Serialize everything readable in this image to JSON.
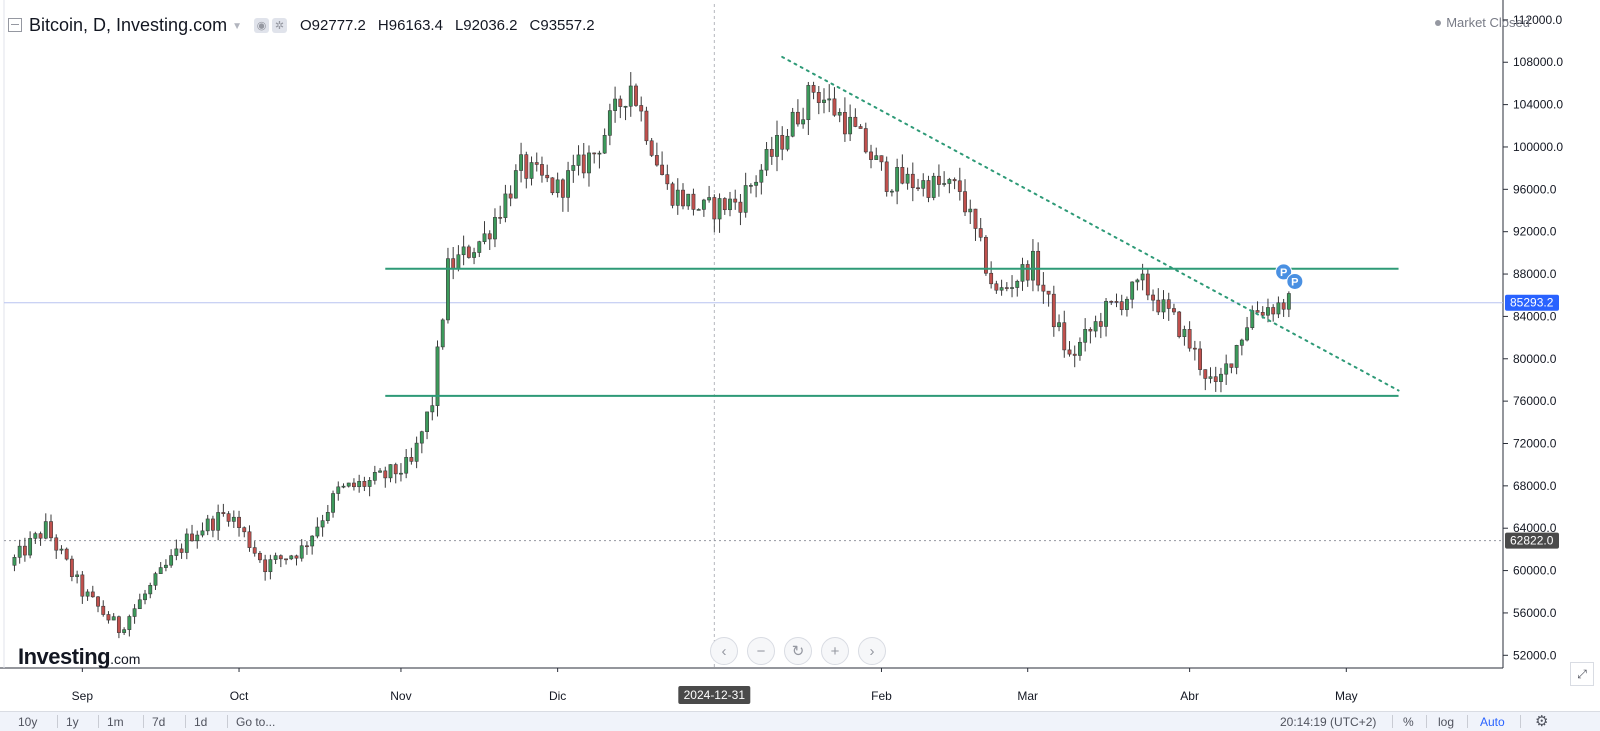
{
  "header": {
    "symbol": "Bitcoin, D, Investing.com",
    "ohlc": [
      {
        "key": "O",
        "value": "92777.2"
      },
      {
        "key": "H",
        "value": "96163.4"
      },
      {
        "key": "L",
        "value": "92036.2"
      },
      {
        "key": "C",
        "value": "93557.2"
      }
    ],
    "status": "Market Closed"
  },
  "brand": {
    "name": "Investing",
    "suffix": ".com"
  },
  "nav_buttons": [
    {
      "name": "scroll-left-button",
      "glyph": "‹"
    },
    {
      "name": "zoom-out-button",
      "glyph": "−"
    },
    {
      "name": "reset-button",
      "glyph": "↻"
    },
    {
      "name": "zoom-in-button",
      "glyph": "+"
    },
    {
      "name": "scroll-right-button",
      "glyph": "›"
    }
  ],
  "bottom_bar": {
    "timeframes": [
      "10y",
      "1y",
      "1m",
      "7d",
      "1d",
      "Go to..."
    ],
    "clock": "20:14:19 (UTC+2)",
    "percent_label": "%",
    "log_label": "log",
    "auto_label": "Auto"
  },
  "crosshair_date": "2024-12-31",
  "colors": {
    "up": "#3c9a5b",
    "down": "#c0504d",
    "support_line": "#2e9a77",
    "trend_line": "#2e9a77",
    "current_price_tag": "#2962ff",
    "marker": "#4a90e2"
  },
  "chart_data": {
    "type": "candlestick",
    "interval": "D",
    "x_axis": {
      "labels": [
        "Sep",
        "Oct",
        "Nov",
        "Dic",
        "Feb",
        "Mar",
        "Abr",
        "May"
      ],
      "label_dates": [
        "2024-09-01",
        "2024-10-01",
        "2024-11-01",
        "2024-12-01",
        "2025-02-01",
        "2025-03-01",
        "2025-04-01",
        "2025-05-01"
      ],
      "range": [
        "2024-08-17",
        "2025-05-31"
      ]
    },
    "y_axis": {
      "ticks": [
        "52000.0",
        "56000.0",
        "60000.0",
        "64000.0",
        "68000.0",
        "72000.0",
        "76000.0",
        "80000.0",
        "84000.0",
        "88000.0",
        "92000.0",
        "96000.0",
        "100000.0",
        "104000.0",
        "108000.0",
        "112000.0"
      ],
      "tick_values": [
        52000,
        56000,
        60000,
        64000,
        68000,
        72000,
        76000,
        80000,
        84000,
        88000,
        92000,
        96000,
        100000,
        104000,
        108000,
        112000
      ],
      "range": [
        50800,
        113500
      ],
      "position": "right"
    },
    "grid": false,
    "price_tags": [
      {
        "value": 85293.2,
        "label": "85293.2",
        "style": "current"
      },
      {
        "value": 62822.0,
        "label": "62822.0",
        "style": "reference"
      }
    ],
    "horizontal_lines": [
      {
        "value": 88500,
        "from": "2024-10-29",
        "to": "2025-05-11"
      },
      {
        "value": 76500,
        "from": "2024-10-29",
        "to": "2025-05-11"
      }
    ],
    "trend_line": {
      "from": {
        "date": "2025-01-13",
        "value": 108500
      },
      "to": {
        "date": "2025-05-11",
        "value": 77000
      },
      "style": "dotted"
    },
    "markers": [
      {
        "date": "2025-04-19",
        "value": 88200,
        "label": "P"
      },
      {
        "date": "2025-04-20",
        "value": 87300,
        "label": "P"
      }
    ],
    "closes_weekly": [
      [
        "2024-08-18",
        60500
      ],
      [
        "2024-08-25",
        64000
      ],
      [
        "2024-09-01",
        58000
      ],
      [
        "2024-09-08",
        54500
      ],
      [
        "2024-09-15",
        59000
      ],
      [
        "2024-09-22",
        63500
      ],
      [
        "2024-09-29",
        65500
      ],
      [
        "2024-10-06",
        60500
      ],
      [
        "2024-10-13",
        62000
      ],
      [
        "2024-10-20",
        67500
      ],
      [
        "2024-10-27",
        68500
      ],
      [
        "2024-11-03",
        70000
      ],
      [
        "2024-11-07",
        76000
      ],
      [
        "2024-11-10",
        88500
      ],
      [
        "2024-11-17",
        91500
      ],
      [
        "2024-11-24",
        98000
      ],
      [
        "2024-12-01",
        96000
      ],
      [
        "2024-12-08",
        99500
      ],
      [
        "2024-12-15",
        106000
      ],
      [
        "2024-12-22",
        96000
      ],
      [
        "2024-12-29",
        94000
      ],
      [
        "2025-01-05",
        95000
      ],
      [
        "2025-01-12",
        100000
      ],
      [
        "2025-01-19",
        105500
      ],
      [
        "2025-01-26",
        102000
      ],
      [
        "2025-02-02",
        97000
      ],
      [
        "2025-02-09",
        96500
      ],
      [
        "2025-02-16",
        96000
      ],
      [
        "2025-02-23",
        86000
      ],
      [
        "2025-03-02",
        89000
      ],
      [
        "2025-03-09",
        80000
      ],
      [
        "2025-03-16",
        84500
      ],
      [
        "2025-03-23",
        87000
      ],
      [
        "2025-03-30",
        83000
      ],
      [
        "2025-04-06",
        77000
      ],
      [
        "2025-04-13",
        84500
      ],
      [
        "2025-04-20",
        85300
      ]
    ]
  }
}
